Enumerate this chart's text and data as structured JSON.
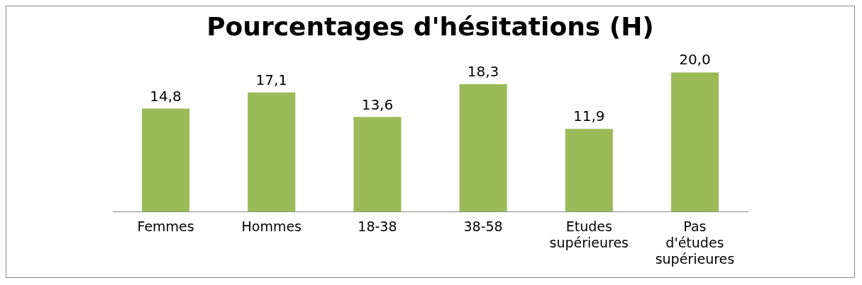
{
  "chart_data": {
    "type": "bar",
    "title": "Pourcentages d'hésitations (H)",
    "categories": [
      "Femmes",
      "Hommes",
      "18-38",
      "38-58",
      "Etudes supérieures",
      "Pas d'études supérieures"
    ],
    "values": [
      14.8,
      17.1,
      13.6,
      18.3,
      11.9,
      20.0
    ],
    "value_labels": [
      "14,8",
      "17,1",
      "13,6",
      "18,3",
      "11,9",
      "20,0"
    ],
    "color": "#9bbb59",
    "grid": false,
    "legend": false
  }
}
